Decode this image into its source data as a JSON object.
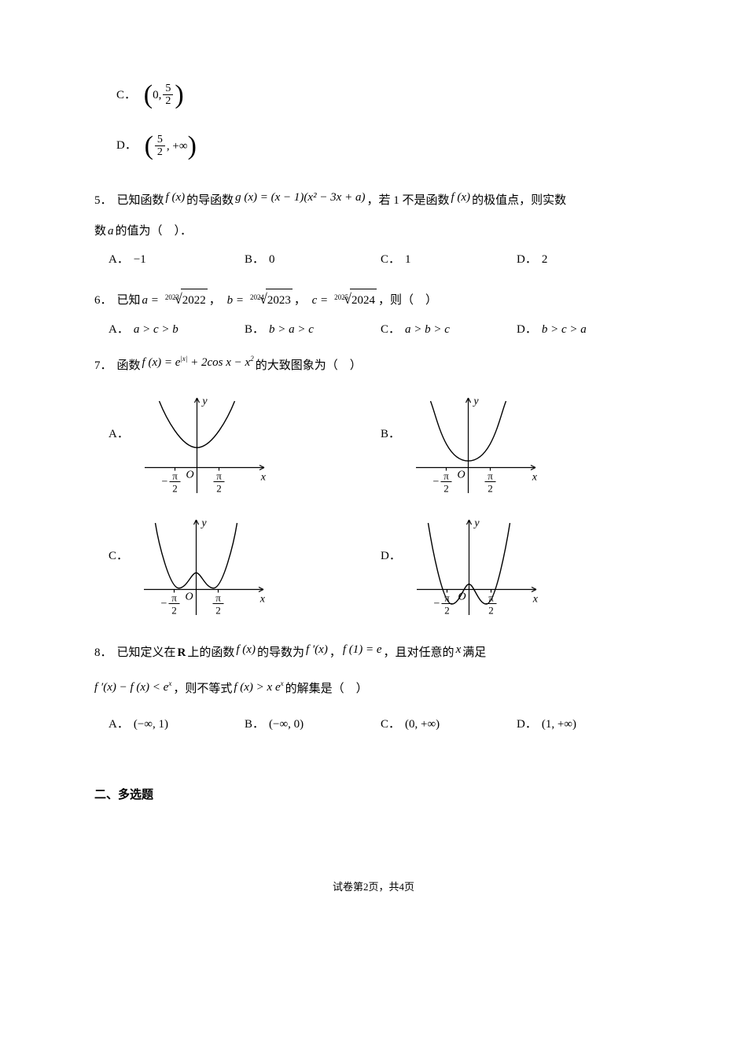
{
  "q_frac_C": {
    "label": "C．",
    "l": "(",
    "a": "0,",
    "num": "5",
    "den": "2",
    "r": ")"
  },
  "q_frac_D": {
    "label": "D．",
    "l": "(",
    "num": "5",
    "den": "2",
    "b": ", +∞",
    "r": ")"
  },
  "q5": {
    "num": "5．",
    "t1": "已知函数",
    "fx": "f (x)",
    "t2": "的导函数",
    "gx": "g (x) = (x − 1)(x² − 3x + a)",
    "t3": "，若 1 不是函数",
    "fx2": "f (x)",
    "t4": "的极值点，则实数",
    "a": "a",
    "t5": "的值为（　）．",
    "opts": {
      "A": "−1",
      "B": "0",
      "C": "1",
      "D": "2"
    }
  },
  "q6": {
    "num": "6．",
    "t1": "已知",
    "a_lhs": "a =",
    "a_idx": "2023",
    "a_arg": "2022",
    "b_lhs": "b =",
    "b_idx": "2024",
    "b_arg": "2023",
    "c_lhs": "c =",
    "c_idx": "2025",
    "c_arg": "2024",
    "comma": "，",
    "t2": "，则（　）",
    "opts": {
      "A": "a > c > b",
      "B": "b > a > c",
      "C": "a > b > c",
      "D": "b > c > a"
    }
  },
  "q7": {
    "num": "7．",
    "t1": "函数",
    "eq": "f (x) = e|x| + 2cos x − x²",
    "t2": "的大致图象为（　）",
    "labels": {
      "A": "A．",
      "B": "B．",
      "C": "C．",
      "D": "D．"
    },
    "axis": {
      "x": "x",
      "y": "y",
      "O": "O",
      "negpi2_num": "π",
      "negpi2_den": "2",
      "pospi2_num": "π",
      "pospi2_den": "2"
    },
    "graphs": {
      "A": {
        "type": "cup_narrow",
        "ybottom": 0.3,
        "wings": true,
        "flat_top": false
      },
      "B": {
        "type": "cup_wide",
        "ybottom": 0.1,
        "wings": true,
        "flat_top": false
      },
      "C": {
        "type": "w_touch",
        "ybottom": 0.02,
        "center_bump": 0.25
      },
      "D": {
        "type": "w_below",
        "ybottom": -0.22,
        "center_bump": 0.08
      }
    },
    "style": {
      "stroke": "#000000",
      "stroke_width": 1.4,
      "axis_width": 1.2,
      "arrow": 6,
      "width": 170,
      "height": 135,
      "tick_len": 4
    }
  },
  "q8": {
    "num": "8．",
    "t1": "已知定义在",
    "R": "R",
    "t2": "上的函数",
    "fx": "f (x)",
    "t3": "的导数为",
    "fpx": "f ′(x)",
    "t4": "，",
    "f1": "f (1) = e",
    "t5": "，且对任意的",
    "x": "x",
    "t6": "满足",
    "line2a": "f ′(x) − f (x) < eˣ",
    "t7": "，则不等式",
    "ineq": "f (x) > x eˣ",
    "t8": "的解集是（　）",
    "opts": {
      "A": "(−∞, 1)",
      "B": "(−∞, 0)",
      "C": "(0, +∞)",
      "D": "(1, +∞)"
    }
  },
  "section2": "二、多选题",
  "footer": {
    "a": "试卷第",
    "p": "2",
    "b": "页，共",
    "t": "4",
    "c": "页"
  }
}
